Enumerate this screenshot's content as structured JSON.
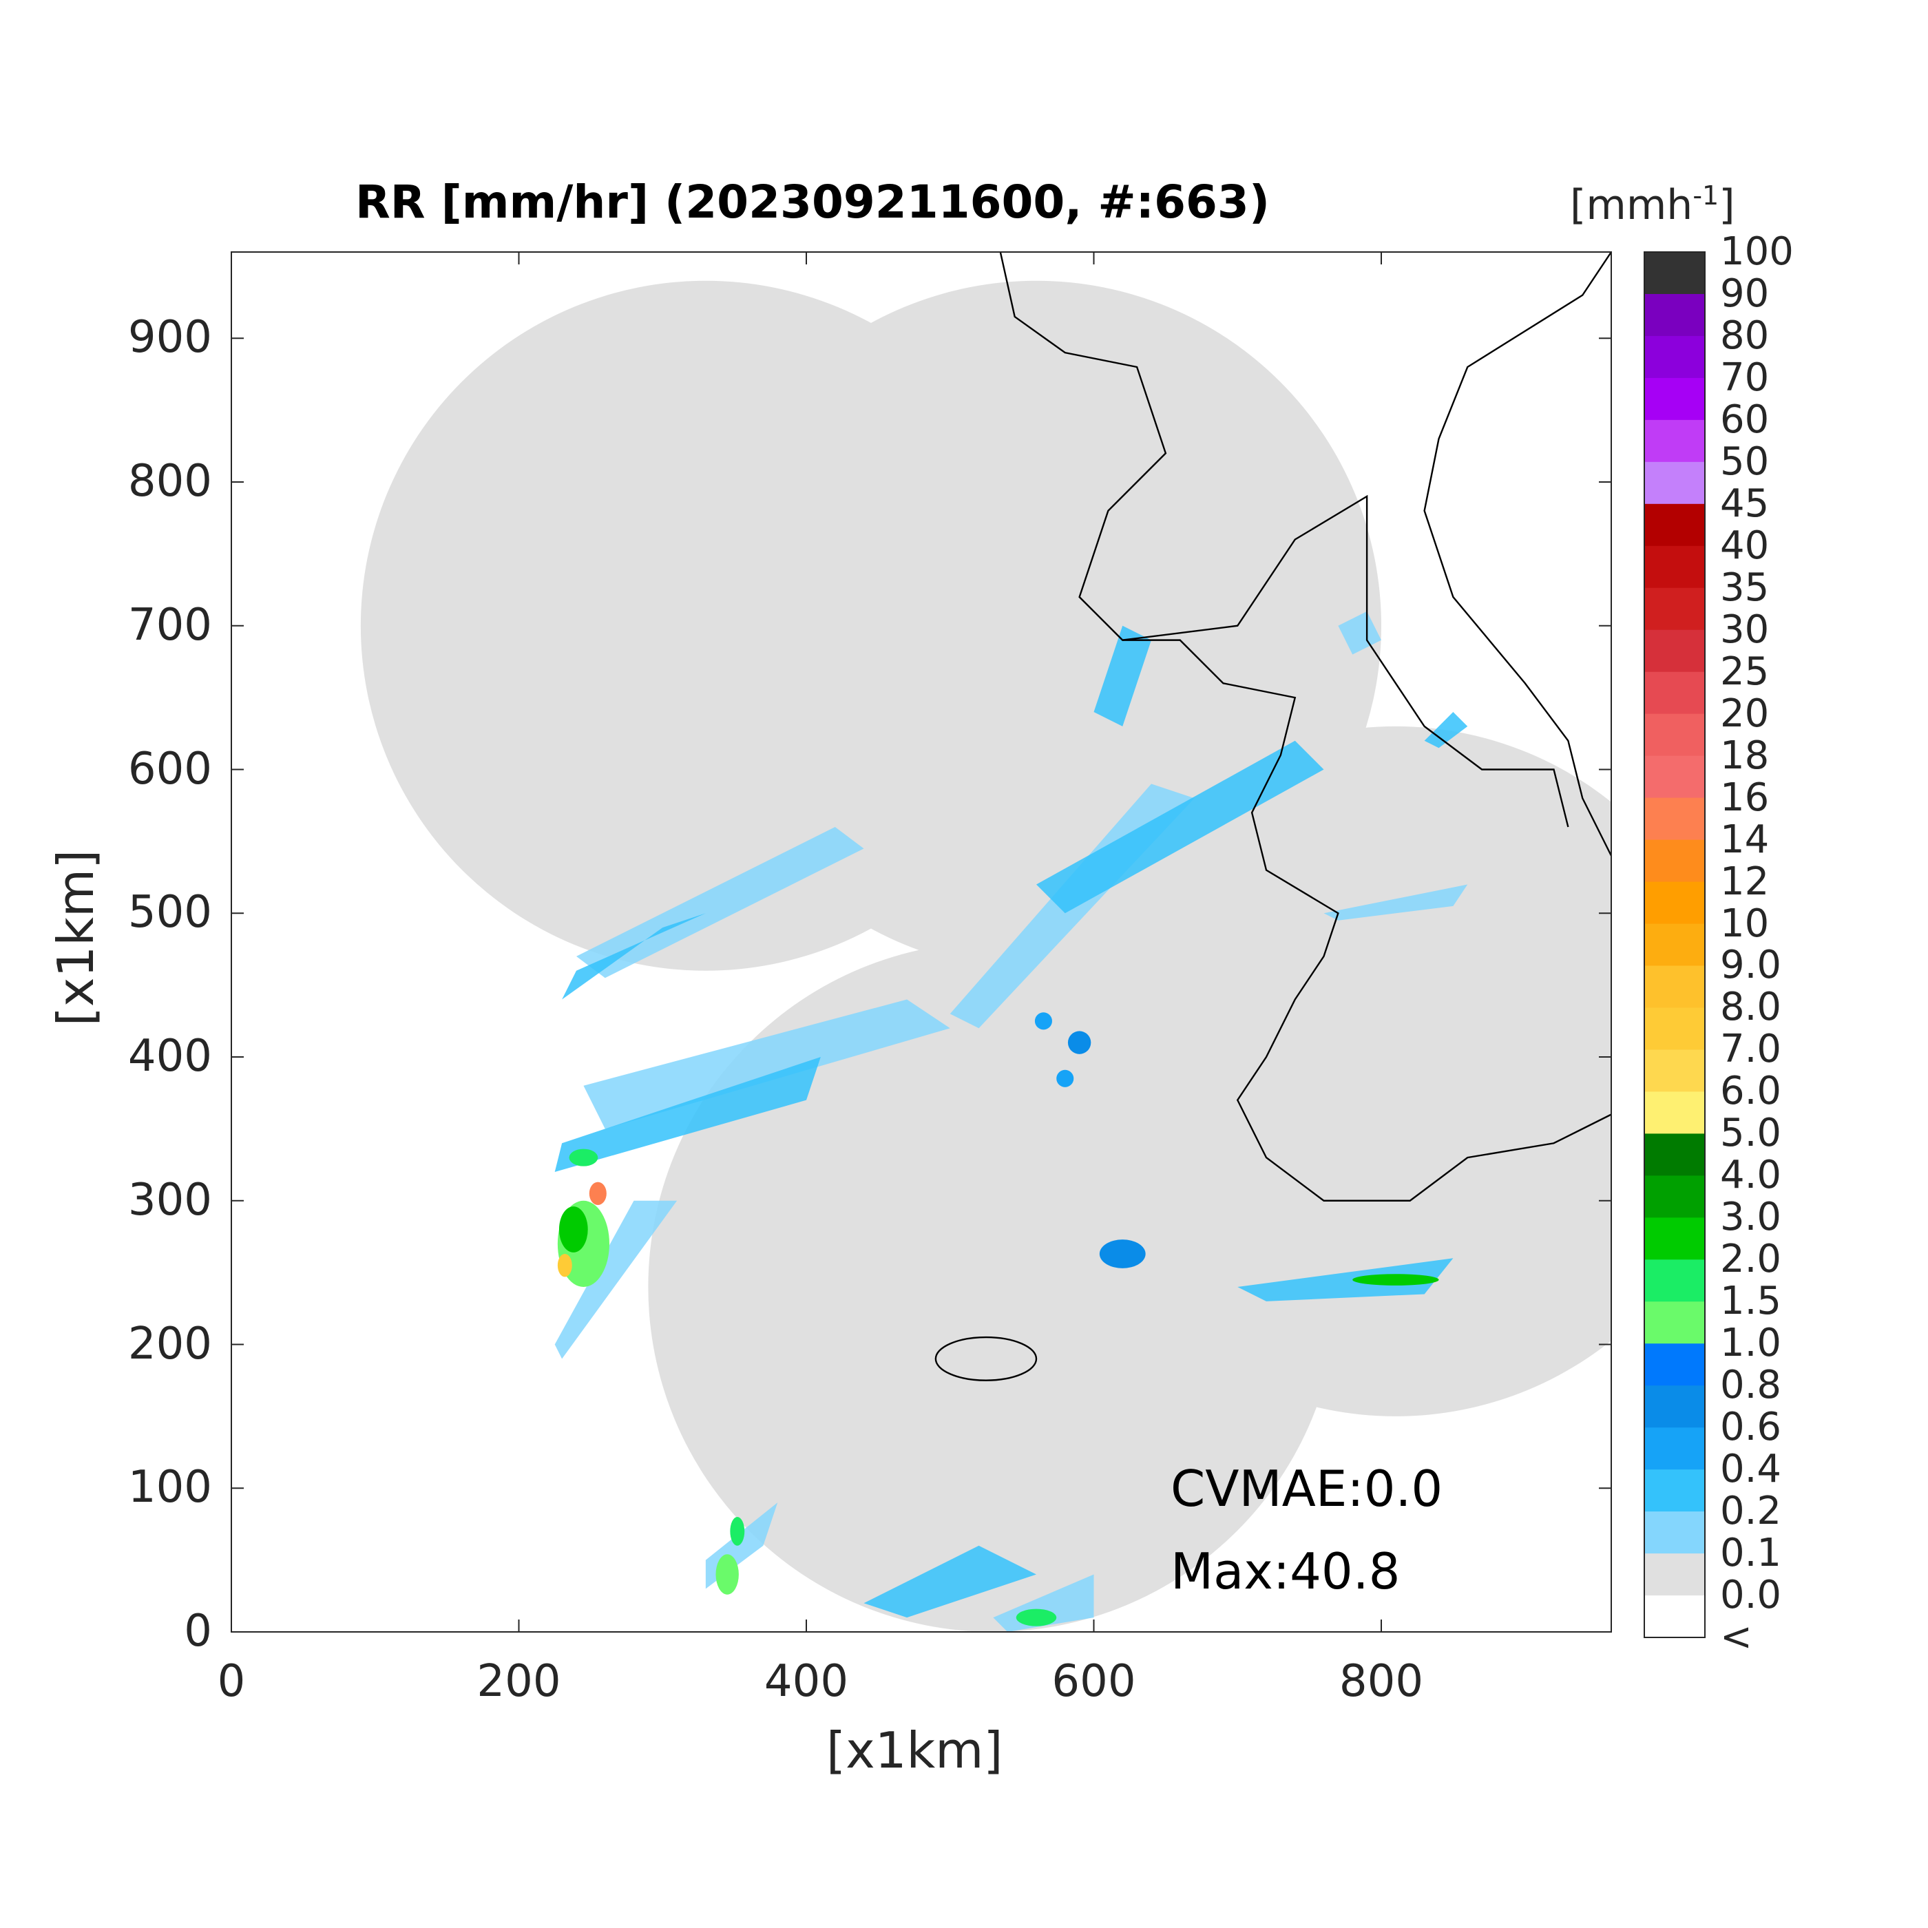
{
  "title": "RR [mm/hr] (202309211600, #:663)",
  "axes": {
    "xlabel": "[x1km]",
    "ylabel": "[x1km]",
    "xlim": [
      0,
      960
    ],
    "ylim": [
      0,
      960
    ],
    "xticks": [
      "0",
      "200",
      "400",
      "600",
      "800"
    ],
    "yticks": [
      "0",
      "100",
      "200",
      "300",
      "400",
      "500",
      "600",
      "700",
      "800",
      "900"
    ]
  },
  "colorbar": {
    "unit_label": "[mmh",
    "unit_exponent": "-1",
    "unit_close": "]",
    "tick_labels": [
      "100",
      "90",
      "80",
      "70",
      "60",
      "50",
      "45",
      "40",
      "35",
      "30",
      "25",
      "20",
      "18",
      "16",
      "14",
      "12",
      "10",
      "9.0",
      "8.0",
      "7.0",
      "6.0",
      "5.0",
      "4.0",
      "3.0",
      "2.0",
      "1.5",
      "1.0",
      "0.8",
      "0.6",
      "0.4",
      "0.2",
      "0.1",
      "0.0",
      "<"
    ],
    "colors": [
      "#333333",
      "#7a00bf",
      "#8c00dc",
      "#a600f5",
      "#c03cf6",
      "#c480fb",
      "#b30000",
      "#c40e0e",
      "#d01f1f",
      "#d6303a",
      "#e64a52",
      "#f06060",
      "#f46c6c",
      "#fd8050",
      "#fe8c1c",
      "#ff9e00",
      "#fdad10",
      "#fec12c",
      "#fecb36",
      "#fed84f",
      "#fef071",
      "#007b00",
      "#00a000",
      "#00cb00",
      "#1bed65",
      "#6afa6a",
      "#0079fd",
      "#0a8ce8",
      "#16a3f7",
      "#34c2fb",
      "#84d6fd",
      "#e0e0e0",
      "#ffffff"
    ]
  },
  "chart_data": {
    "type": "heatmap",
    "title": "RR [mm/hr] (202309211600, #:663)",
    "xlabel": "[x1km]",
    "ylabel": "[x1km]",
    "xlim": [
      0,
      960
    ],
    "ylim": [
      0,
      960
    ],
    "colorbar_levels": [
      0.0,
      0.1,
      0.2,
      0.4,
      0.6,
      0.8,
      1.0,
      1.5,
      2.0,
      3.0,
      4.0,
      5.0,
      6.0,
      7.0,
      8.0,
      9.0,
      10,
      12,
      14,
      16,
      18,
      20,
      25,
      30,
      35,
      40,
      45,
      50,
      60,
      70,
      80,
      90,
      100
    ],
    "coverage_circles": [
      {
        "center": [
          330,
          700
        ],
        "radius": 240
      },
      {
        "center": [
          560,
          700
        ],
        "radius": 240
      },
      {
        "center": [
          810,
          390
        ],
        "radius": 240
      },
      {
        "center": [
          530,
          240
        ],
        "radius": 240
      }
    ],
    "max_value": 40.8
  },
  "annotations": {
    "cvmae": "CVMAE:0.0",
    "max": "Max:40.8"
  }
}
